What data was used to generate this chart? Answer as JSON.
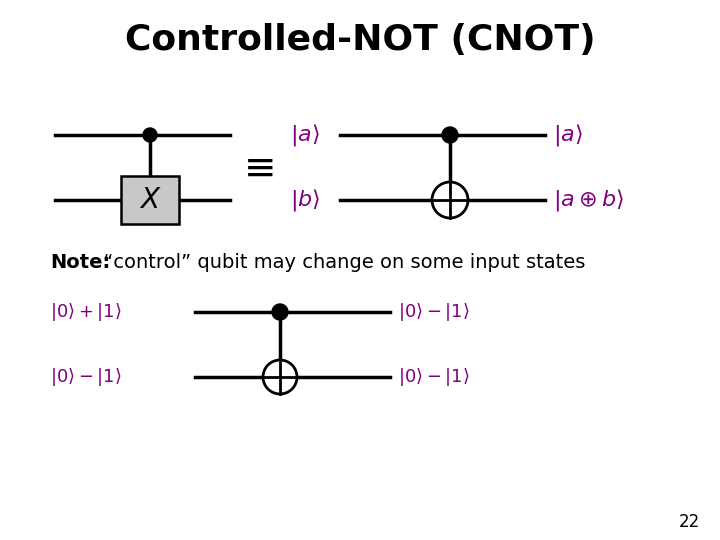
{
  "title": "Controlled-NOT (CNOT)",
  "title_fontsize": 26,
  "title_fontweight": "bold",
  "background_color": "#ffffff",
  "purple_color": "#800080",
  "black_color": "#000000",
  "note_bold": "Note:",
  "note_rest": " “control” qubit may change on some input states",
  "page_number": "22",
  "left_label_a": "$|a\\rangle$",
  "left_label_b": "$|b\\rangle$",
  "right_label_a": "$|a\\rangle$",
  "right_label_ab": "$|a\\oplus b\\rangle$",
  "bot_ctrl_label": "$|0\\rangle + |1\\rangle$",
  "bot_tgt_label": "$|0\\rangle - |1\\rangle$",
  "bot_ctrl_out": "$|0\\rangle - |1\\rangle$",
  "bot_tgt_out": "$|0\\rangle - |1\\rangle$"
}
